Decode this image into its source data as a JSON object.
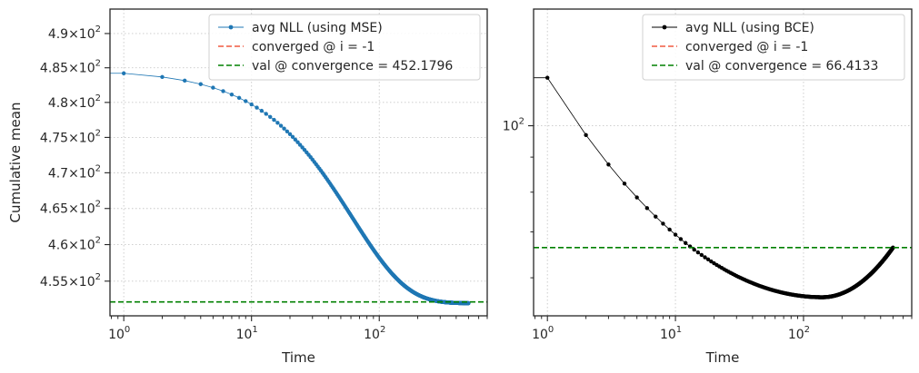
{
  "chart_data": [
    {
      "type": "line",
      "xscale": "log",
      "yscale": "log",
      "xlabel": "Time",
      "ylabel": "Cumulative mean",
      "xlim": [
        0.78,
        700
      ],
      "ylim": [
        450.3,
        493.6
      ],
      "xticks": [
        {
          "value": 1,
          "base": "10",
          "exp": "0"
        },
        {
          "value": 10,
          "base": "10",
          "exp": "1"
        },
        {
          "value": 100,
          "base": "10",
          "exp": "2"
        }
      ],
      "yticks": [
        {
          "value": 455,
          "mant": "4.55",
          "exp": "2"
        },
        {
          "value": 460,
          "mant": "4.6",
          "exp": "2"
        },
        {
          "value": 465,
          "mant": "4.65",
          "exp": "2"
        },
        {
          "value": 470,
          "mant": "4.7",
          "exp": "2"
        },
        {
          "value": 475,
          "mant": "4.75",
          "exp": "2"
        },
        {
          "value": 480,
          "mant": "4.8",
          "exp": "2"
        },
        {
          "value": 485,
          "mant": "4.85",
          "exp": "2"
        },
        {
          "value": 490,
          "mant": "4.9",
          "exp": "2"
        }
      ],
      "grid": true,
      "legend_position": "top-right",
      "series": [
        {
          "name": "avg NLL (using MSE)",
          "color": "#1f77b4",
          "style": "line-markers",
          "model": {
            "kind": "decay",
            "start": 484.2,
            "end": 452.0,
            "tau": 60,
            "n": 500
          }
        },
        {
          "name": "converged @ i = -1",
          "color": "#f05a40",
          "style": "dashed",
          "vline": -1
        },
        {
          "name": "val @ convergence = 452.1796",
          "color": "#008000",
          "style": "dashed",
          "hline": 452.1796
        }
      ]
    },
    {
      "type": "line",
      "xscale": "log",
      "yscale": "log",
      "xlabel": "Time",
      "ylabel": "",
      "xlim": [
        0.78,
        700
      ],
      "ylim": [
        52.8,
        148
      ],
      "xticks": [
        {
          "value": 1,
          "base": "10",
          "exp": "0"
        },
        {
          "value": 10,
          "base": "10",
          "exp": "1"
        },
        {
          "value": 100,
          "base": "10",
          "exp": "2"
        }
      ],
      "yticks": [
        {
          "value": 100,
          "mant": "",
          "exp": "2"
        }
      ],
      "minor_yticks": [
        60,
        70,
        80,
        90
      ],
      "grid": true,
      "legend_position": "top-right",
      "series": [
        {
          "name": "avg NLL (using BCE)",
          "color": "#000000",
          "style": "line-markers",
          "model": {
            "kind": "bce",
            "start": 117.5,
            "min": 56.2,
            "tmin": 140,
            "end": 66.4,
            "n": 500
          }
        },
        {
          "name": "converged @ i = -1",
          "color": "#f05a40",
          "style": "dashed",
          "vline": -1
        },
        {
          "name": "val @ convergence = 66.4133",
          "color": "#008000",
          "style": "dashed",
          "hline": 66.4133
        }
      ]
    }
  ]
}
